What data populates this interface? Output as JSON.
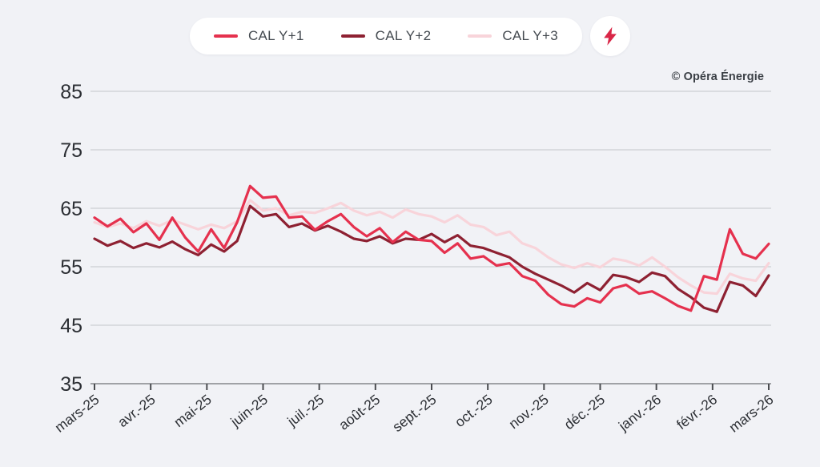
{
  "header": {
    "legend_items": [
      {
        "label": "CAL Y+1",
        "color": "#e5314e"
      },
      {
        "label": "CAL Y+2",
        "color": "#8e2132"
      },
      {
        "label": "CAL Y+3",
        "color": "#f8d4da"
      }
    ],
    "bolt_icon_color": "#d92647",
    "copyright": "© Opéra Énergie"
  },
  "chart_data": {
    "type": "line",
    "title": "",
    "xlabel": "",
    "ylabel": "",
    "ylim": [
      35,
      85
    ],
    "yticks": [
      35,
      45,
      55,
      65,
      75,
      85
    ],
    "x_tick_labels": [
      "mars-25",
      "avr.-25",
      "mai-25",
      "juin-25",
      "juil.-25",
      "août-25",
      "sept.-25",
      "oct.-25",
      "nov.-25",
      "déc.-25",
      "janv.-26",
      "févr.-26",
      "mars-26"
    ],
    "grid": true,
    "legend_position": "top",
    "series": [
      {
        "name": "CAL Y+1",
        "color": "#e5314e",
        "values": [
          63.4,
          61.9,
          63.2,
          60.9,
          62.4,
          59.6,
          63.4,
          60.0,
          57.6,
          61.4,
          58.2,
          62.6,
          68.8,
          66.8,
          67.0,
          63.4,
          63.6,
          61.3,
          62.8,
          64.0,
          61.8,
          60.2,
          61.6,
          59.2,
          61.0,
          59.6,
          59.4,
          57.4,
          59.0,
          56.4,
          56.8,
          55.2,
          55.6,
          53.4,
          52.6,
          50.2,
          48.6,
          48.2,
          49.6,
          48.9,
          51.3,
          51.9,
          50.4,
          50.8,
          49.6,
          48.3,
          47.5,
          53.4,
          52.8,
          61.4,
          57.2,
          56.4,
          58.9
        ]
      },
      {
        "name": "CAL Y+2",
        "color": "#8e2132",
        "values": [
          59.8,
          58.6,
          59.4,
          58.2,
          59.0,
          58.3,
          59.3,
          58.0,
          57.0,
          58.8,
          57.6,
          59.4,
          65.4,
          63.6,
          64.0,
          61.8,
          62.4,
          61.2,
          62.0,
          61.0,
          59.8,
          59.4,
          60.2,
          59.0,
          59.8,
          59.6,
          60.6,
          59.2,
          60.4,
          58.6,
          58.2,
          57.4,
          56.6,
          55.0,
          53.8,
          52.8,
          51.8,
          50.6,
          52.2,
          51.0,
          53.6,
          53.2,
          52.4,
          54.0,
          53.4,
          51.2,
          49.8,
          48.0,
          47.3,
          52.4,
          51.8,
          50.0,
          53.5
        ]
      },
      {
        "name": "CAL Y+3",
        "color": "#f8d4da",
        "values": [
          62.6,
          61.8,
          62.4,
          61.6,
          62.8,
          62.0,
          63.0,
          62.2,
          61.4,
          62.2,
          61.6,
          62.8,
          66.4,
          64.6,
          65.0,
          63.8,
          64.4,
          64.2,
          65.0,
          65.9,
          64.6,
          63.8,
          64.4,
          63.4,
          64.8,
          64.0,
          63.6,
          62.6,
          63.8,
          62.2,
          61.8,
          60.4,
          61.0,
          59.0,
          58.2,
          56.6,
          55.4,
          54.8,
          55.6,
          54.9,
          56.4,
          56.0,
          55.2,
          56.6,
          55.0,
          53.2,
          51.8,
          50.6,
          50.4,
          53.8,
          53.0,
          52.6,
          55.6
        ]
      }
    ]
  },
  "colors": {
    "background": "#f1f2f6",
    "grid": "#cdced3",
    "axis": "#85878c",
    "tick": "#4a4c50",
    "tick_label": "#2b2e33"
  }
}
